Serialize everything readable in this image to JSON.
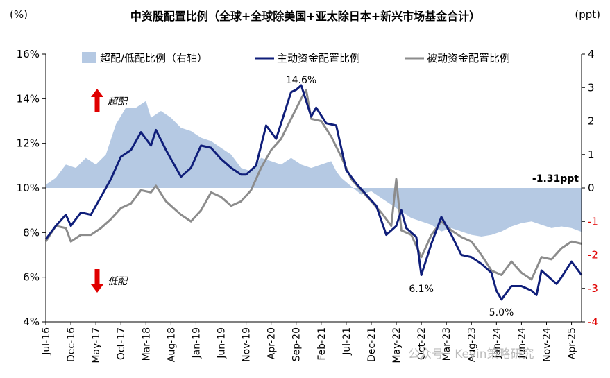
{
  "title": "中资股配置比例（全球+全球除美国+亚太除日本+新兴市场基金合计）",
  "unit_left": "(%)",
  "unit_right": "(ppt)",
  "watermark": "公众号 · Kevin策略研究",
  "colors": {
    "active": "#0f1e7a",
    "passive": "#8c8c8c",
    "area": "#b5c9e3",
    "red": "#e00000"
  },
  "arrows": {
    "up_label": "超配",
    "down_label": "低配"
  },
  "annotations": {
    "last_value": "-1.31ppt",
    "peak": "14.6%",
    "low1": "6.1%",
    "low2": "5.0%"
  },
  "chart_data": {
    "type": "line",
    "x_start": "2016-07",
    "x_end": "2025-06",
    "xticks": [
      "Jul-16",
      "Dec-16",
      "May-17",
      "Oct-17",
      "Mar-18",
      "Aug-18",
      "Jan-19",
      "Jun-19",
      "Nov-19",
      "Apr-20",
      "Sep-20",
      "Feb-21",
      "Jul-21",
      "Dec-21",
      "May-22",
      "Oct-22",
      "Mar-23",
      "Aug-23",
      "Jan-24",
      "Jun-24",
      "Nov-24",
      "Apr-25"
    ],
    "yleft_ticks": [
      "4%",
      "6%",
      "8%",
      "10%",
      "12%",
      "14%",
      "16%"
    ],
    "yleft_lim": [
      4,
      16
    ],
    "yright_ticks": [
      "-4",
      "-3",
      "-2",
      "-1",
      "0",
      "1",
      "2",
      "3",
      "4"
    ],
    "yright_lim": [
      -4,
      4
    ],
    "grid": false,
    "legend": [
      "超配/低配比例（右轴）",
      "主动资金配置比例",
      "被动资金配置比例"
    ],
    "series": [
      {
        "name": "超配/低配比例（右轴）",
        "axis": "right",
        "type": "area",
        "points": [
          [
            "2016-07",
            0.1
          ],
          [
            "2016-09",
            0.3
          ],
          [
            "2016-11",
            0.7
          ],
          [
            "2017-01",
            0.6
          ],
          [
            "2017-03",
            0.9
          ],
          [
            "2017-05",
            0.7
          ],
          [
            "2017-07",
            1.0
          ],
          [
            "2017-09",
            1.9
          ],
          [
            "2017-11",
            2.4
          ],
          [
            "2018-01",
            2.4
          ],
          [
            "2018-03",
            2.6
          ],
          [
            "2018-04",
            2.1
          ],
          [
            "2018-06",
            2.3
          ],
          [
            "2018-08",
            2.1
          ],
          [
            "2018-10",
            1.8
          ],
          [
            "2018-12",
            1.7
          ],
          [
            "2019-02",
            1.5
          ],
          [
            "2019-04",
            1.4
          ],
          [
            "2019-06",
            1.2
          ],
          [
            "2019-08",
            1.0
          ],
          [
            "2019-10",
            0.6
          ],
          [
            "2019-12",
            0.5
          ],
          [
            "2020-02",
            0.9
          ],
          [
            "2020-04",
            0.8
          ],
          [
            "2020-06",
            0.7
          ],
          [
            "2020-08",
            0.9
          ],
          [
            "2020-10",
            0.7
          ],
          [
            "2020-12",
            0.6
          ],
          [
            "2021-02",
            0.7
          ],
          [
            "2021-04",
            0.8
          ],
          [
            "2021-05",
            0.5
          ],
          [
            "2021-06",
            0.3
          ],
          [
            "2021-08",
            0.05
          ],
          [
            "2021-10",
            -0.2
          ],
          [
            "2021-12",
            -0.1
          ],
          [
            "2022-02",
            -0.3
          ],
          [
            "2022-04",
            -0.5
          ],
          [
            "2022-06",
            -0.7
          ],
          [
            "2022-08",
            -0.9
          ],
          [
            "2022-10",
            -1.0
          ],
          [
            "2022-12",
            -1.1
          ],
          [
            "2023-02",
            -1.3
          ],
          [
            "2023-04",
            -1.2
          ],
          [
            "2023-06",
            -1.3
          ],
          [
            "2023-08",
            -1.4
          ],
          [
            "2023-10",
            -1.45
          ],
          [
            "2023-12",
            -1.4
          ],
          [
            "2024-02",
            -1.3
          ],
          [
            "2024-04",
            -1.15
          ],
          [
            "2024-06",
            -1.05
          ],
          [
            "2024-08",
            -1.0
          ],
          [
            "2024-10",
            -1.1
          ],
          [
            "2024-12",
            -1.2
          ],
          [
            "2025-02",
            -1.15
          ],
          [
            "2025-04",
            -1.2
          ],
          [
            "2025-06",
            -1.31
          ]
        ]
      },
      {
        "name": "主动资金配置比例",
        "axis": "left",
        "type": "line",
        "points": [
          [
            "2016-07",
            7.7
          ],
          [
            "2016-09",
            8.3
          ],
          [
            "2016-11",
            8.8
          ],
          [
            "2016-12",
            8.3
          ],
          [
            "2017-02",
            8.9
          ],
          [
            "2017-04",
            8.8
          ],
          [
            "2017-06",
            9.6
          ],
          [
            "2017-08",
            10.4
          ],
          [
            "2017-10",
            11.4
          ],
          [
            "2017-12",
            11.7
          ],
          [
            "2018-02",
            12.5
          ],
          [
            "2018-04",
            11.9
          ],
          [
            "2018-05",
            12.6
          ],
          [
            "2018-07",
            11.7
          ],
          [
            "2018-08",
            11.3
          ],
          [
            "2018-10",
            10.5
          ],
          [
            "2018-12",
            10.9
          ],
          [
            "2019-02",
            11.9
          ],
          [
            "2019-04",
            11.8
          ],
          [
            "2019-06",
            11.3
          ],
          [
            "2019-08",
            10.9
          ],
          [
            "2019-10",
            10.6
          ],
          [
            "2019-11",
            10.6
          ],
          [
            "2020-01",
            11.0
          ],
          [
            "2020-03",
            12.8
          ],
          [
            "2020-05",
            12.2
          ],
          [
            "2020-07",
            13.6
          ],
          [
            "2020-08",
            14.3
          ],
          [
            "2020-09",
            14.4
          ],
          [
            "2020-10",
            14.6
          ],
          [
            "2020-12",
            13.2
          ],
          [
            "2021-01",
            13.6
          ],
          [
            "2021-03",
            12.9
          ],
          [
            "2021-05",
            12.8
          ],
          [
            "2021-07",
            10.8
          ],
          [
            "2021-09",
            10.2
          ],
          [
            "2021-11",
            9.7
          ],
          [
            "2022-01",
            9.2
          ],
          [
            "2022-03",
            7.9
          ],
          [
            "2022-05",
            8.3
          ],
          [
            "2022-06",
            9.0
          ],
          [
            "2022-07",
            8.2
          ],
          [
            "2022-09",
            7.8
          ],
          [
            "2022-10",
            6.1
          ],
          [
            "2022-12",
            7.5
          ],
          [
            "2023-02",
            8.7
          ],
          [
            "2023-04",
            7.9
          ],
          [
            "2023-06",
            7.0
          ],
          [
            "2023-08",
            6.9
          ],
          [
            "2023-10",
            6.6
          ],
          [
            "2023-12",
            6.2
          ],
          [
            "2024-01",
            5.4
          ],
          [
            "2024-02",
            5.0
          ],
          [
            "2024-04",
            5.6
          ],
          [
            "2024-06",
            5.6
          ],
          [
            "2024-08",
            5.4
          ],
          [
            "2024-09",
            5.2
          ],
          [
            "2024-10",
            6.3
          ],
          [
            "2024-12",
            5.9
          ],
          [
            "2025-01",
            5.7
          ],
          [
            "2025-02",
            6.0
          ],
          [
            "2025-04",
            6.7
          ],
          [
            "2025-06",
            6.1
          ]
        ]
      },
      {
        "name": "被动资金配置比例",
        "axis": "left",
        "type": "line",
        "points": [
          [
            "2016-07",
            7.6
          ],
          [
            "2016-09",
            8.3
          ],
          [
            "2016-11",
            8.2
          ],
          [
            "2016-12",
            7.6
          ],
          [
            "2017-02",
            7.9
          ],
          [
            "2017-04",
            7.9
          ],
          [
            "2017-06",
            8.2
          ],
          [
            "2017-08",
            8.6
          ],
          [
            "2017-10",
            9.1
          ],
          [
            "2017-12",
            9.3
          ],
          [
            "2018-02",
            9.9
          ],
          [
            "2018-04",
            9.8
          ],
          [
            "2018-05",
            10.1
          ],
          [
            "2018-07",
            9.4
          ],
          [
            "2018-09",
            9.0
          ],
          [
            "2018-10",
            8.8
          ],
          [
            "2018-12",
            8.5
          ],
          [
            "2019-02",
            9.0
          ],
          [
            "2019-04",
            9.8
          ],
          [
            "2019-06",
            9.6
          ],
          [
            "2019-08",
            9.2
          ],
          [
            "2019-10",
            9.4
          ],
          [
            "2019-12",
            9.9
          ],
          [
            "2020-02",
            10.9
          ],
          [
            "2020-04",
            11.7
          ],
          [
            "2020-06",
            12.2
          ],
          [
            "2020-08",
            13.1
          ],
          [
            "2020-10",
            14.0
          ],
          [
            "2020-11",
            14.4
          ],
          [
            "2020-12",
            13.1
          ],
          [
            "2021-02",
            13.0
          ],
          [
            "2021-04",
            12.3
          ],
          [
            "2021-06",
            11.4
          ],
          [
            "2021-08",
            10.4
          ],
          [
            "2021-10",
            9.9
          ],
          [
            "2021-12",
            9.4
          ],
          [
            "2022-02",
            8.9
          ],
          [
            "2022-04",
            8.3
          ],
          [
            "2022-05",
            10.4
          ],
          [
            "2022-06",
            8.1
          ],
          [
            "2022-08",
            7.9
          ],
          [
            "2022-10",
            6.9
          ],
          [
            "2022-12",
            7.9
          ],
          [
            "2023-02",
            8.5
          ],
          [
            "2023-04",
            8.1
          ],
          [
            "2023-06",
            7.8
          ],
          [
            "2023-08",
            7.6
          ],
          [
            "2023-10",
            7.0
          ],
          [
            "2023-12",
            6.3
          ],
          [
            "2024-02",
            6.1
          ],
          [
            "2024-04",
            6.7
          ],
          [
            "2024-06",
            6.2
          ],
          [
            "2024-08",
            5.9
          ],
          [
            "2024-10",
            6.9
          ],
          [
            "2024-12",
            6.8
          ],
          [
            "2025-02",
            7.3
          ],
          [
            "2025-04",
            7.6
          ],
          [
            "2025-06",
            7.5
          ]
        ]
      }
    ]
  }
}
